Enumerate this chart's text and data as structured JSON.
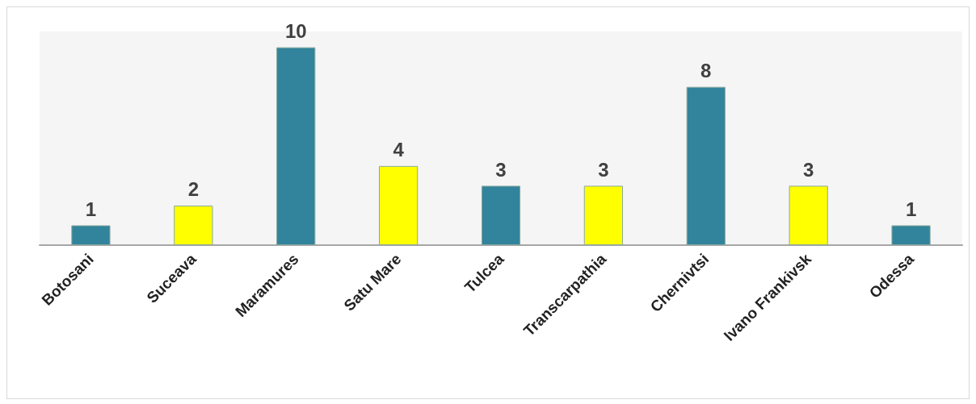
{
  "chart_data": {
    "type": "bar",
    "categories": [
      "Botosani",
      "Suceava",
      "Maramures",
      "Satu Mare",
      "Tulcea",
      "Transcarpathia",
      "Chernivtsi",
      "Ivano Frankivsk",
      "Odessa"
    ],
    "values": [
      1,
      2,
      10,
      4,
      3,
      3,
      8,
      3,
      1
    ],
    "colors": [
      "#31849b",
      "#ffff00",
      "#31849b",
      "#ffff00",
      "#31849b",
      "#ffff00",
      "#31849b",
      "#ffff00",
      "#31849b"
    ],
    "data_labels": true
  }
}
